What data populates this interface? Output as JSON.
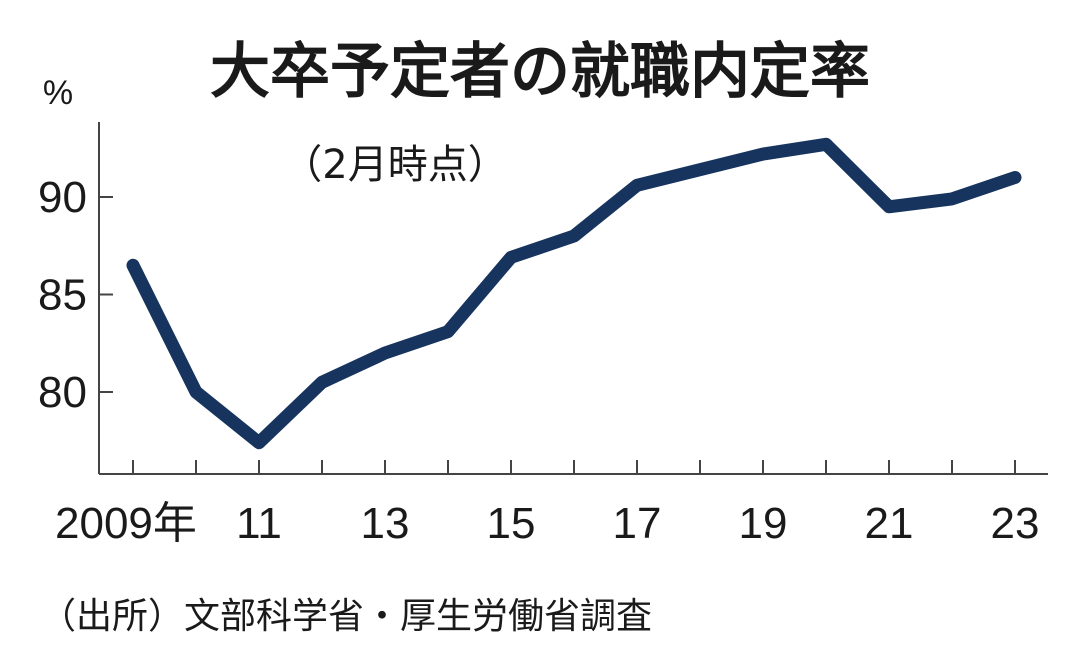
{
  "chart_data": {
    "type": "line",
    "title": "大卒予定者の就職内定率",
    "subtitle": "（2月時点）",
    "unit": "%",
    "source": "（出所）文部科学省・厚生労働省調査",
    "x": [
      2009,
      2010,
      2011,
      2012,
      2013,
      2014,
      2015,
      2016,
      2017,
      2018,
      2019,
      2020,
      2021,
      2022,
      2023
    ],
    "x_tick_values": [
      2009,
      2011,
      2013,
      2015,
      2017,
      2019,
      2021,
      2023
    ],
    "x_tick_labels": [
      "2009年",
      "11",
      "13",
      "15",
      "17",
      "19",
      "21",
      "23"
    ],
    "y_tick_values": [
      80,
      85,
      90
    ],
    "y_tick_labels": [
      "80",
      "85",
      "90"
    ],
    "ylim": [
      78,
      94
    ],
    "series": [
      {
        "values": [
          86.5,
          80.0,
          77.4,
          80.5,
          82.0,
          83.1,
          86.9,
          88.0,
          90.6,
          91.4,
          92.2,
          92.7,
          89.5,
          89.9,
          91.0
        ]
      }
    ],
    "colors": {
      "line": "#17345e",
      "axis": "#444444",
      "text": "#1a1a1a"
    },
    "grid": false
  }
}
